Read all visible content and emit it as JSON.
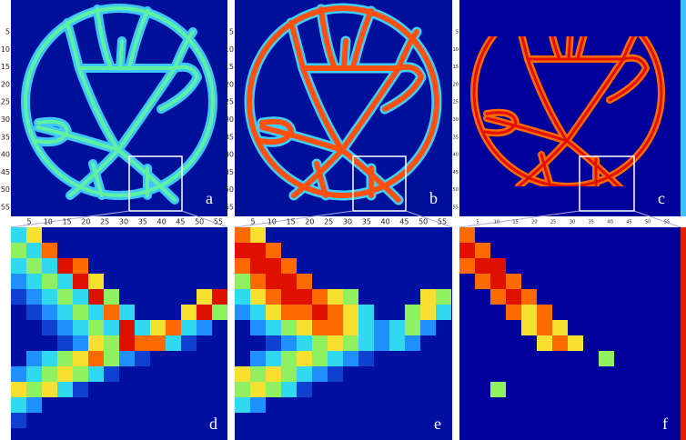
{
  "panels": [
    {
      "label": "a"
    },
    {
      "label": "b"
    },
    {
      "label": "c"
    },
    {
      "label": "d"
    },
    {
      "label": "e"
    },
    {
      "label": "f"
    }
  ],
  "y_ticks": [
    "5",
    "10",
    "15",
    "20",
    "25",
    "30",
    "35",
    "40",
    "45",
    "50",
    "55"
  ],
  "x_ticks": [
    "5",
    "10",
    "15",
    "20",
    "25",
    "30",
    "35",
    "40",
    "45",
    "50",
    "55"
  ]
}
